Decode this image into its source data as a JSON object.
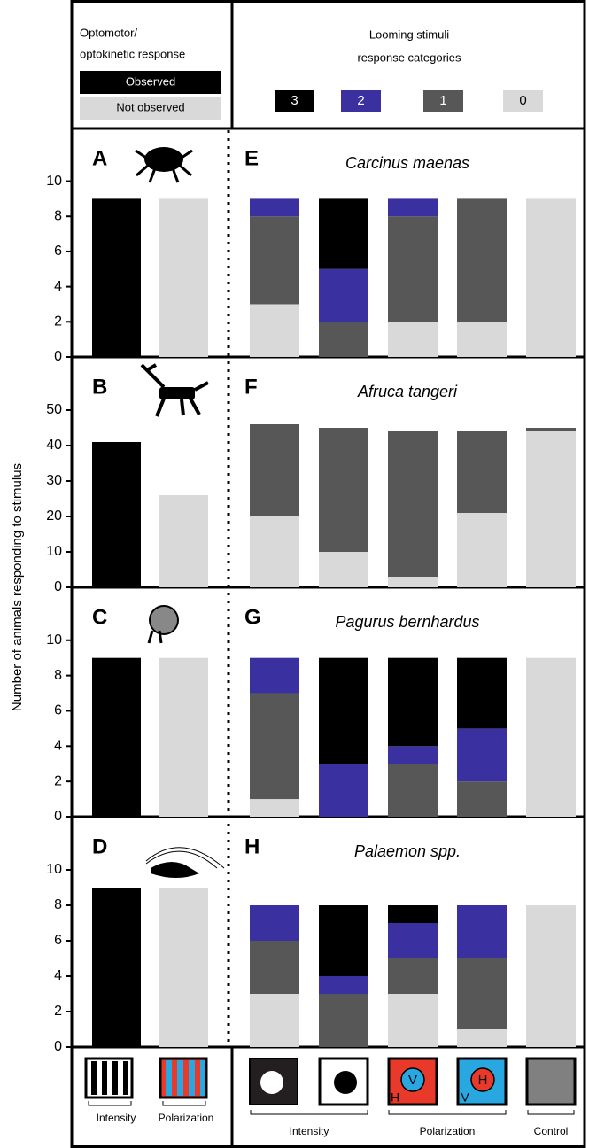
{
  "header": {
    "left_title": [
      "Optomotor/",
      "optokinetic response"
    ],
    "legend_left": [
      {
        "name": "Observed",
        "color": "#000000"
      },
      {
        "name": "Not observed",
        "color": "#d9d9d9"
      }
    ],
    "right_title": [
      "Looming stimuli",
      "response categories"
    ],
    "legend_right": [
      {
        "name": "3",
        "color": "#000000"
      },
      {
        "name": "2",
        "color": "#3b30a0"
      },
      {
        "name": "1",
        "color": "#575757"
      },
      {
        "name": "0",
        "color": "#d9d9d9"
      }
    ]
  },
  "y_axis_label": "Number of animals responding to stimulus",
  "chart_data": [
    {
      "type": "bar",
      "panel": "A",
      "categories": [
        null,
        null
      ],
      "values": [
        9,
        9
      ],
      "ylim": [
        0,
        13
      ],
      "yticks": [
        0,
        2,
        4,
        6,
        8,
        10
      ]
    },
    {
      "type": "bar",
      "panel": "B",
      "categories": [
        null,
        null
      ],
      "values": [
        41,
        26
      ],
      "ylim": [
        0,
        65
      ],
      "yticks": [
        0,
        10,
        20,
        30,
        40,
        50
      ]
    },
    {
      "type": "bar",
      "panel": "C",
      "categories": [
        null,
        null
      ],
      "values": [
        9,
        9
      ],
      "ylim": [
        0,
        13
      ],
      "yticks": [
        0,
        2,
        4,
        6,
        8,
        10
      ]
    },
    {
      "type": "bar",
      "panel": "D",
      "categories": [
        null,
        null
      ],
      "values": [
        9,
        9
      ],
      "ylim": [
        0,
        13
      ],
      "yticks": [
        0,
        2,
        4,
        6,
        8,
        10
      ]
    },
    {
      "type": "stacked_bar",
      "panel": "E",
      "title": "Carcinus maenas",
      "categories": [
        null,
        null,
        null,
        null,
        null
      ],
      "ylim": [
        0,
        13
      ],
      "series": [
        {
          "values": [
            0,
            4,
            0,
            0,
            0
          ]
        },
        {
          "values": [
            1,
            3,
            1,
            0,
            0
          ]
        },
        {
          "values": [
            5,
            2,
            6,
            7,
            0
          ]
        },
        {
          "values": [
            3,
            0,
            2,
            2,
            9
          ]
        }
      ]
    },
    {
      "type": "stacked_bar",
      "panel": "F",
      "title": "Afruca tangeri",
      "categories": [
        null,
        null,
        null,
        null,
        null
      ],
      "ylim": [
        0,
        65
      ],
      "series": [
        {
          "values": [
            0,
            0,
            0,
            0,
            0
          ]
        },
        {
          "values": [
            0,
            0,
            0,
            0,
            0
          ]
        },
        {
          "values": [
            26,
            35,
            41,
            23,
            1
          ]
        },
        {
          "values": [
            20,
            10,
            3,
            21,
            44
          ]
        }
      ]
    },
    {
      "type": "stacked_bar",
      "panel": "G",
      "title": "Pagurus bernhardus",
      "categories": [
        null,
        null,
        null,
        null,
        null
      ],
      "ylim": [
        0,
        13
      ],
      "series": [
        {
          "values": [
            0,
            6,
            5,
            4,
            0
          ]
        },
        {
          "values": [
            2,
            3,
            1,
            3,
            0
          ]
        },
        {
          "values": [
            6,
            0,
            3,
            2,
            0
          ]
        },
        {
          "values": [
            1,
            0,
            0,
            0,
            9
          ]
        }
      ]
    },
    {
      "type": "stacked_bar",
      "panel": "H",
      "title": "Palaemon spp.",
      "categories": [
        null,
        null,
        null,
        null,
        null
      ],
      "ylim": [
        0,
        13
      ],
      "series": [
        {
          "values": [
            0,
            4,
            1,
            0,
            0
          ]
        },
        {
          "values": [
            2,
            1,
            2,
            3,
            0
          ]
        },
        {
          "values": [
            3,
            3,
            2,
            4,
            0
          ]
        },
        {
          "values": [
            3,
            0,
            3,
            1,
            8
          ]
        }
      ]
    }
  ],
  "footer": {
    "left_labels": [
      "Intensity",
      "Polarization"
    ],
    "right_labels": [
      "Intensity",
      "Polarization",
      "Control"
    ],
    "icon_letters": [
      "V",
      "H",
      "H",
      "V"
    ]
  }
}
